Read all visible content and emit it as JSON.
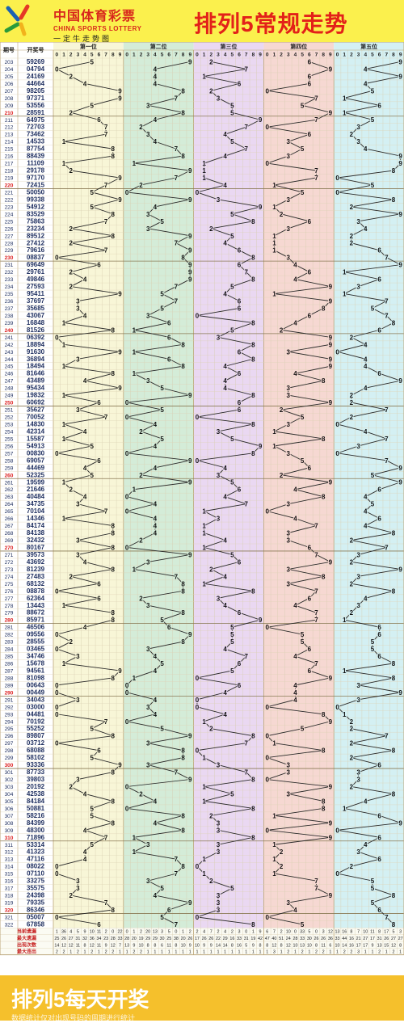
{
  "header": {
    "brand_cn": "中国体育彩票",
    "brand_en": "CHINA SPORTS LOTTERY",
    "slogan": "一定牛走势图",
    "title": "排列5常规走势"
  },
  "table_headers": {
    "period": "期号",
    "draw": "开奖号"
  },
  "positions": [
    "第一位",
    "第二位",
    "第三位",
    "第四位",
    "第五位"
  ],
  "digits": [
    "0",
    "1",
    "2",
    "3",
    "4",
    "5",
    "6",
    "7",
    "8",
    "9"
  ],
  "stat_labels": [
    "当前遗漏",
    "最大遗漏",
    "出现次数",
    "最大连出"
  ],
  "colors": {
    "col0": "#f8f6d7",
    "col1": "#d4ecd8",
    "col2": "#ead8f2",
    "col3": "#f6d8d2",
    "col4": "#d4f0f3",
    "frame": "#bda77b",
    "line": "#2b2b2b",
    "number": "#203060",
    "stat_label": "#c62020"
  },
  "footer": {
    "big_text": "排列5每天开奖",
    "small_text": "数据统计仅对出现号码的周期进行统计"
  },
  "chart_data": {
    "type": "table",
    "title": "排列5常规走势",
    "x_label": "期号",
    "series_names": [
      "第一位",
      "第二位",
      "第三位",
      "第四位",
      "第五位"
    ],
    "periods": [
      "203",
      "204",
      "205",
      "206",
      "207",
      "208",
      "209",
      "210",
      "211",
      "212",
      "213",
      "214",
      "215",
      "216",
      "217",
      "218",
      "219",
      "220",
      "221",
      "222",
      "223",
      "224",
      "225",
      "226",
      "227",
      "228",
      "229",
      "230",
      "231",
      "232",
      "233",
      "234",
      "235",
      "236",
      "237",
      "238",
      "239",
      "240",
      "241",
      "242",
      "243",
      "244",
      "245",
      "246",
      "247",
      "248",
      "249",
      "250",
      "251",
      "252",
      "253",
      "254",
      "255",
      "256",
      "257",
      "258",
      "259",
      "260",
      "261",
      "262",
      "263",
      "264",
      "265",
      "266",
      "267",
      "268",
      "269",
      "270",
      "271",
      "272",
      "273",
      "274",
      "275",
      "276",
      "277",
      "278",
      "279",
      "280",
      "281",
      "282",
      "283",
      "284",
      "285",
      "286",
      "287",
      "288",
      "289",
      "290",
      "291",
      "292",
      "293",
      "294",
      "295",
      "296",
      "297",
      "298",
      "299",
      "300",
      "301",
      "302",
      "303",
      "304",
      "305",
      "306",
      "307",
      "308",
      "309",
      "310",
      "311",
      "312",
      "313",
      "314",
      "315",
      "316",
      "317",
      "318",
      "319",
      "320",
      "321",
      "322"
    ],
    "draws": [
      "59269",
      "04794",
      "24169",
      "44664",
      "98205",
      "97371",
      "53556",
      "28591",
      "64975",
      "72703",
      "73462",
      "14533",
      "87754",
      "88439",
      "11109",
      "29178",
      "97170",
      "72415",
      "50050",
      "99338",
      "54912",
      "83529",
      "75863",
      "23234",
      "89512",
      "27412",
      "79616",
      "08837",
      "69649",
      "29761",
      "49846",
      "27593",
      "95411",
      "37697",
      "35685",
      "43067",
      "16848",
      "81526",
      "06392",
      "18894",
      "91630",
      "36894",
      "18494",
      "81646",
      "43489",
      "95434",
      "19832",
      "60692",
      "35627",
      "70052",
      "14830",
      "42314",
      "15587",
      "54913",
      "00830",
      "69057",
      "44469",
      "52325",
      "19599",
      "21646",
      "40484",
      "34735",
      "70104",
      "14346",
      "84174",
      "84138",
      "32432",
      "80167",
      "39573",
      "43692",
      "81239",
      "27483",
      "68132",
      "08878",
      "62364",
      "13443",
      "88672",
      "85971",
      "46506",
      "09556",
      "28555",
      "03465",
      "34746",
      "15678",
      "94561",
      "81098",
      "00643",
      "00449",
      "34043",
      "03000",
      "04481",
      "70192",
      "55252",
      "89807",
      "03712",
      "68088",
      "58102",
      "93336",
      "87733",
      "39803",
      "20192",
      "42538",
      "84184",
      "50881",
      "58216",
      "84399",
      "48300",
      "71896",
      "53314",
      "41323",
      "47116",
      "08022",
      "07110",
      "33275",
      "35575",
      "24398",
      "79335",
      "86346",
      "05007",
      "67858"
    ],
    "stats": {
      "当前遗漏": [
        [
          1,
          36,
          4,
          5,
          9,
          10,
          11,
          2,
          0,
          22
        ],
        [
          0,
          1,
          2,
          20,
          13,
          3,
          5,
          0,
          1,
          2
        ],
        [
          2,
          4,
          7,
          2,
          4,
          2,
          3,
          0,
          1,
          9
        ],
        [
          6,
          7,
          2,
          10,
          0,
          33,
          5,
          0,
          3,
          12
        ],
        [
          13,
          16,
          8,
          7,
          10,
          11,
          8,
          17,
          5,
          3
        ]
      ],
      "最大遗漏": [
        [
          25,
          26,
          27,
          31,
          32,
          36,
          34,
          23,
          28,
          33
        ],
        [
          28,
          20,
          19,
          29,
          29,
          30,
          25,
          38,
          20,
          26
        ],
        [
          17,
          26,
          26,
          22,
          29,
          16,
          33,
          31,
          19,
          42
        ],
        [
          47,
          40,
          51,
          24,
          28,
          33,
          30,
          26,
          26,
          36
        ],
        [
          33,
          44,
          16,
          21,
          27,
          17,
          31,
          26,
          27,
          27
        ]
      ],
      "出现次数": [
        [
          14,
          12,
          12,
          11,
          8,
          12,
          11,
          9,
          12,
          7
        ],
        [
          13,
          9,
          10,
          8,
          8,
          6,
          11,
          8,
          10,
          9
        ],
        [
          10,
          9,
          9,
          14,
          14,
          8,
          16,
          5,
          9,
          8
        ],
        [
          8,
          12,
          8,
          12,
          10,
          13,
          10,
          8,
          11,
          6
        ],
        [
          10,
          14,
          16,
          17,
          17,
          9,
          13,
          15,
          12,
          8
        ]
      ],
      "最大连出": [
        [
          2,
          2,
          1,
          2,
          1,
          2,
          1,
          2,
          2,
          1
        ],
        [
          1,
          2,
          2,
          1,
          1,
          1,
          1,
          1,
          1,
          1
        ],
        [
          1,
          1,
          1,
          1,
          1,
          1,
          1,
          1,
          1,
          1
        ],
        [
          1,
          3,
          1,
          2,
          1,
          2,
          1,
          2,
          2,
          1
        ],
        [
          1,
          2,
          2,
          3,
          1,
          1,
          2,
          1,
          2,
          1
        ]
      ]
    }
  }
}
